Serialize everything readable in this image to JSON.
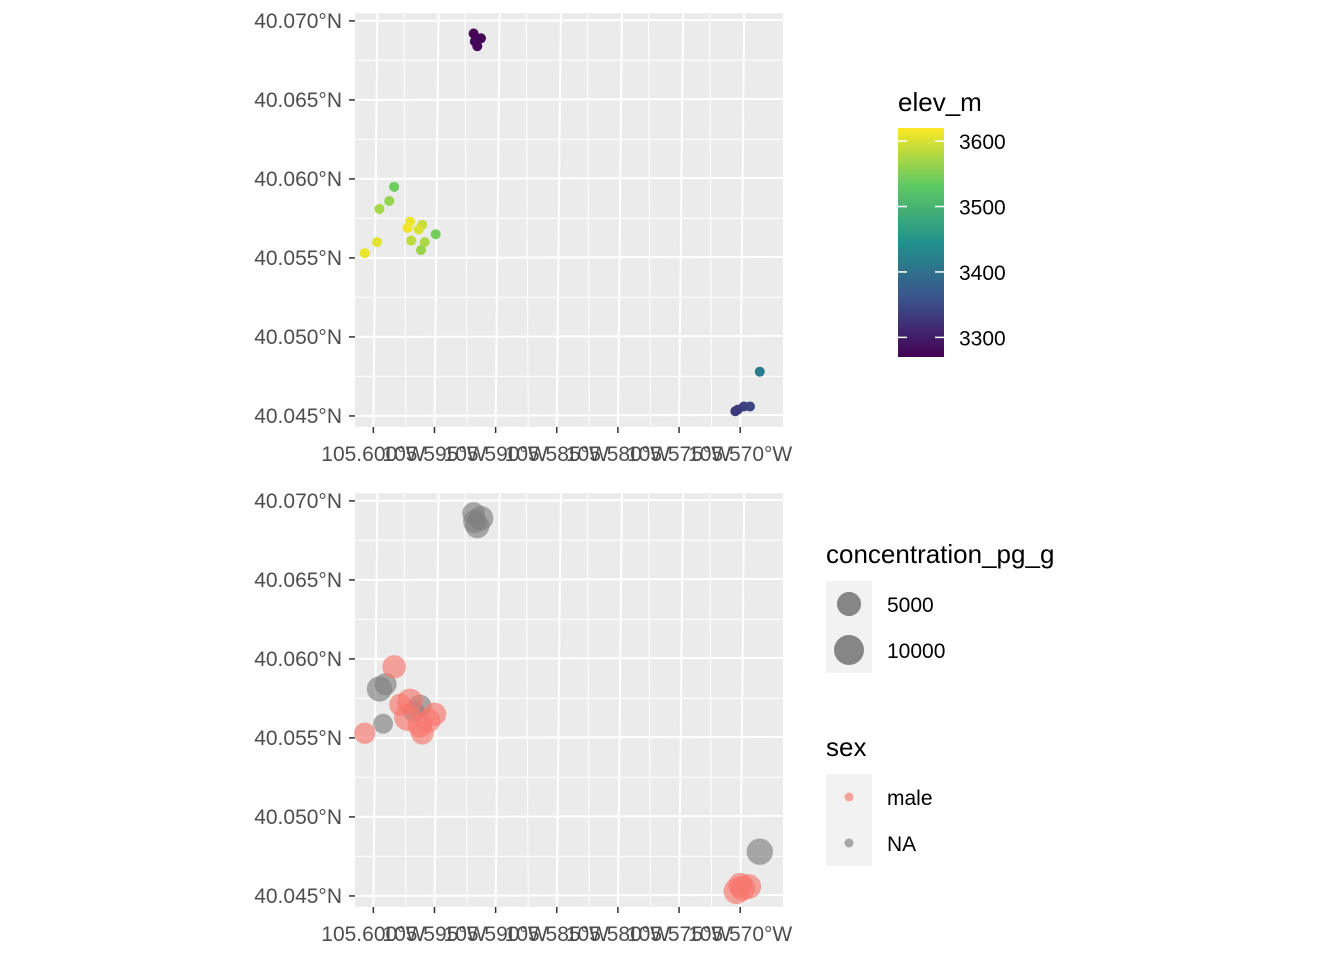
{
  "chart_data": [
    {
      "type": "scatter",
      "title": "",
      "xlabel": "",
      "ylabel": "",
      "xlim": [
        105.6015,
        105.5665
      ],
      "ylim": [
        40.0443,
        40.0705
      ],
      "x_ticks": [
        105.6,
        105.595,
        105.59,
        105.585,
        105.58,
        105.575,
        105.57
      ],
      "x_tick_labels": [
        "105.600°W",
        "105.595°W",
        "105.590°W",
        "105.585°W",
        "105.580°W",
        "105.575°W",
        "105.570°W"
      ],
      "y_ticks": [
        40.045,
        40.05,
        40.055,
        40.06,
        40.065,
        40.07
      ],
      "y_tick_labels": [
        "40.045°N",
        "40.050°N",
        "40.055°N",
        "40.060°N",
        "40.065°N",
        "40.070°N"
      ],
      "grid": true,
      "legend": {
        "title": "elev_m",
        "type": "colorbar",
        "placement": "right",
        "min": 3270,
        "max": 3620,
        "breaks": [
          3300,
          3400,
          3500,
          3600
        ],
        "break_labels": [
          "3300",
          "3400",
          "3500",
          "3600"
        ],
        "palette": [
          "#440154",
          "#3b528b",
          "#21918c",
          "#5ec962",
          "#fde725"
        ]
      },
      "points": [
        {
          "lon": 105.5918,
          "lat": 40.0692,
          "elev_m": 3272
        },
        {
          "lon": 105.5912,
          "lat": 40.0689,
          "elev_m": 3274
        },
        {
          "lon": 105.5915,
          "lat": 40.0684,
          "elev_m": 3276
        },
        {
          "lon": 105.5917,
          "lat": 40.0687,
          "elev_m": 3278
        },
        {
          "lon": 105.5983,
          "lat": 40.0595,
          "elev_m": 3540
        },
        {
          "lon": 105.5987,
          "lat": 40.0586,
          "elev_m": 3562
        },
        {
          "lon": 105.5995,
          "lat": 40.0581,
          "elev_m": 3572
        },
        {
          "lon": 105.5997,
          "lat": 40.056,
          "elev_m": 3605
        },
        {
          "lon": 105.6007,
          "lat": 40.0553,
          "elev_m": 3610
        },
        {
          "lon": 105.5949,
          "lat": 40.0565,
          "elev_m": 3545
        },
        {
          "lon": 105.597,
          "lat": 40.0573,
          "elev_m": 3610
        },
        {
          "lon": 105.596,
          "lat": 40.0571,
          "elev_m": 3590
        },
        {
          "lon": 105.5963,
          "lat": 40.0568,
          "elev_m": 3600
        },
        {
          "lon": 105.5972,
          "lat": 40.0569,
          "elev_m": 3612
        },
        {
          "lon": 105.5969,
          "lat": 40.0561,
          "elev_m": 3585
        },
        {
          "lon": 105.5958,
          "lat": 40.056,
          "elev_m": 3575
        },
        {
          "lon": 105.5961,
          "lat": 40.0555,
          "elev_m": 3565
        },
        {
          "lon": 105.5684,
          "lat": 40.0478,
          "elev_m": 3415
        },
        {
          "lon": 105.5692,
          "lat": 40.0456,
          "elev_m": 3345
        },
        {
          "lon": 105.5697,
          "lat": 40.0456,
          "elev_m": 3340
        },
        {
          "lon": 105.5702,
          "lat": 40.0454,
          "elev_m": 3335
        },
        {
          "lon": 105.5704,
          "lat": 40.0453,
          "elev_m": 3330
        }
      ]
    },
    {
      "type": "scatter",
      "title": "",
      "xlabel": "",
      "ylabel": "",
      "xlim": [
        105.6015,
        105.5665
      ],
      "ylim": [
        40.0443,
        40.0705
      ],
      "x_ticks": [
        105.6,
        105.595,
        105.59,
        105.585,
        105.58,
        105.575,
        105.57
      ],
      "x_tick_labels": [
        "105.600°W",
        "105.595°W",
        "105.590°W",
        "105.585°W",
        "105.580°W",
        "105.575°W",
        "105.570°W"
      ],
      "y_ticks": [
        40.045,
        40.05,
        40.055,
        40.06,
        40.065,
        40.07
      ],
      "y_tick_labels": [
        "40.045°N",
        "40.050°N",
        "40.055°N",
        "40.060°N",
        "40.065°N",
        "40.070°N"
      ],
      "grid": true,
      "size_legend": {
        "title": "concentration_pg_g",
        "placement": "right",
        "breaks": [
          5000,
          10000
        ],
        "break_labels": [
          "5000",
          "10000"
        ]
      },
      "color_legend": {
        "title": "sex",
        "placement": "right",
        "categories": [
          "male",
          "NA"
        ],
        "colors": [
          "#f8766d",
          "#7f7f7f"
        ]
      },
      "points": [
        {
          "lon": 105.5918,
          "lat": 40.0692,
          "concentration_pg_g": 5500,
          "sex": "NA"
        },
        {
          "lon": 105.5912,
          "lat": 40.0689,
          "concentration_pg_g": 7000,
          "sex": "NA"
        },
        {
          "lon": 105.5915,
          "lat": 40.0684,
          "concentration_pg_g": 6500,
          "sex": "NA"
        },
        {
          "lon": 105.5917,
          "lat": 40.0687,
          "concentration_pg_g": 6000,
          "sex": "NA"
        },
        {
          "lon": 105.5995,
          "lat": 40.0581,
          "concentration_pg_g": 7500,
          "sex": "NA"
        },
        {
          "lon": 105.599,
          "lat": 40.0584,
          "concentration_pg_g": 5000,
          "sex": "NA"
        },
        {
          "lon": 105.5992,
          "lat": 40.0559,
          "concentration_pg_g": 3500,
          "sex": "NA"
        },
        {
          "lon": 105.5962,
          "lat": 40.057,
          "concentration_pg_g": 6000,
          "sex": "NA"
        },
        {
          "lon": 105.5967,
          "lat": 40.0567,
          "concentration_pg_g": 4500,
          "sex": "NA"
        },
        {
          "lon": 105.5983,
          "lat": 40.0595,
          "concentration_pg_g": 6000,
          "sex": "male"
        },
        {
          "lon": 105.6007,
          "lat": 40.0553,
          "concentration_pg_g": 4500,
          "sex": "male"
        },
        {
          "lon": 105.597,
          "lat": 40.0573,
          "concentration_pg_g": 8000,
          "sex": "male"
        },
        {
          "lon": 105.5972,
          "lat": 40.0563,
          "concentration_pg_g": 9000,
          "sex": "male"
        },
        {
          "lon": 105.5962,
          "lat": 40.0558,
          "concentration_pg_g": 7000,
          "sex": "male"
        },
        {
          "lon": 105.596,
          "lat": 40.0553,
          "concentration_pg_g": 5500,
          "sex": "male"
        },
        {
          "lon": 105.5955,
          "lat": 40.0561,
          "concentration_pg_g": 6500,
          "sex": "male"
        },
        {
          "lon": 105.595,
          "lat": 40.0565,
          "concentration_pg_g": 6000,
          "sex": "male"
        },
        {
          "lon": 105.5978,
          "lat": 40.0571,
          "concentration_pg_g": 5000,
          "sex": "male"
        },
        {
          "lon": 105.5684,
          "lat": 40.0478,
          "concentration_pg_g": 8500,
          "sex": "NA"
        },
        {
          "lon": 105.5703,
          "lat": 40.0453,
          "concentration_pg_g": 8000,
          "sex": "male"
        },
        {
          "lon": 105.5698,
          "lat": 40.0455,
          "concentration_pg_g": 7500,
          "sex": "male"
        },
        {
          "lon": 105.5693,
          "lat": 40.0456,
          "concentration_pg_g": 7000,
          "sex": "male"
        },
        {
          "lon": 105.57,
          "lat": 40.0457,
          "concentration_pg_g": 6500,
          "sex": "male"
        }
      ]
    }
  ]
}
